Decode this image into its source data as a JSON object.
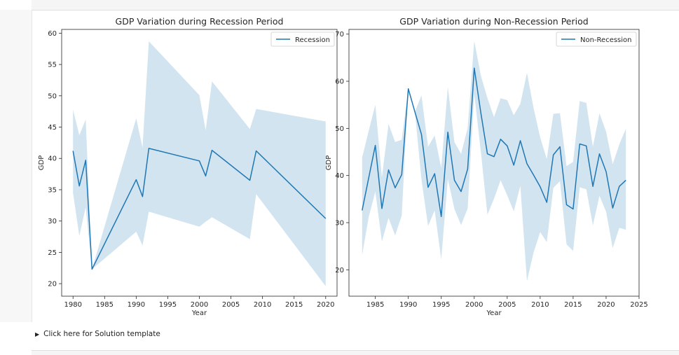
{
  "app": {
    "details_label": "Click here for Solution template"
  },
  "theme": {
    "line_color": "#1f77b4",
    "band_color": "#1f77b4",
    "band_opacity": 0.2
  },
  "chart_data": [
    {
      "type": "line",
      "title": "GDP Variation during Recession Period",
      "xlabel": "Year",
      "ylabel": "GDP",
      "xlim": [
        1978.2,
        2021.8
      ],
      "ylim": [
        18.0,
        60.6
      ],
      "xticks": [
        1980,
        1985,
        1990,
        1995,
        2000,
        2005,
        2010,
        2015,
        2020
      ],
      "yticks": [
        20,
        25,
        30,
        35,
        40,
        45,
        50,
        55,
        60
      ],
      "legend": {
        "entries": [
          "Recession"
        ],
        "position": "top-right"
      },
      "grid": false,
      "series": [
        {
          "name": "Recession",
          "x": [
            1980,
            1981,
            1982,
            1983,
            1990,
            1991,
            1992,
            2000,
            2001,
            2002,
            2008,
            2009,
            2020
          ],
          "y": [
            41.2,
            35.6,
            39.7,
            22.3,
            36.6,
            33.9,
            41.6,
            39.6,
            37.2,
            41.3,
            36.5,
            41.2,
            30.4
          ],
          "upper": [
            47.8,
            43.7,
            46.2,
            22.3,
            46.4,
            41.7,
            58.7,
            50.1,
            44.5,
            52.3,
            44.7,
            47.9,
            45.9
          ],
          "lower": [
            34.5,
            27.6,
            32.2,
            22.3,
            28.3,
            26.1,
            31.5,
            29.1,
            29.9,
            30.6,
            27.1,
            34.3,
            19.6
          ]
        }
      ]
    },
    {
      "type": "line",
      "title": "GDP Variation during Non-Recession Period",
      "xlabel": "Year",
      "ylabel": "GDP",
      "xlim": [
        1981.0,
        2025.0
      ],
      "ylim": [
        14.4,
        71.0
      ],
      "xticks": [
        1985,
        1990,
        1995,
        2000,
        2005,
        2010,
        2015,
        2020,
        2025
      ],
      "yticks": [
        20,
        30,
        40,
        50,
        60,
        70
      ],
      "legend": {
        "entries": [
          "Non-Recession"
        ],
        "position": "top-right"
      },
      "grid": false,
      "series": [
        {
          "name": "Non-Recession",
          "x": [
            1983,
            1984,
            1985,
            1986,
            1987,
            1988,
            1989,
            1990,
            1991,
            1992,
            1993,
            1994,
            1995,
            1996,
            1997,
            1998,
            1999,
            2000,
            2001,
            2002,
            2003,
            2004,
            2005,
            2006,
            2007,
            2008,
            2009,
            2010,
            2011,
            2012,
            2013,
            2014,
            2015,
            2016,
            2017,
            2018,
            2019,
            2020,
            2021,
            2022,
            2023
          ],
          "y": [
            32.6,
            39.5,
            46.4,
            33.0,
            41.2,
            37.4,
            40.2,
            58.4,
            53.5,
            48.7,
            37.5,
            40.4,
            31.3,
            49.2,
            39.0,
            36.6,
            41.4,
            62.8,
            53.3,
            44.6,
            44.0,
            47.7,
            46.3,
            42.2,
            47.4,
            42.5,
            40.1,
            37.6,
            34.3,
            44.4,
            46.1,
            33.8,
            32.9,
            46.7,
            46.3,
            37.7,
            44.6,
            40.8,
            33.1,
            37.7,
            39.0
          ],
          "upper": [
            43.8,
            49.5,
            55.0,
            39.6,
            50.9,
            47.1,
            47.6,
            58.4,
            53.5,
            57.0,
            46.1,
            48.5,
            41.6,
            58.8,
            47.1,
            44.6,
            50.1,
            68.6,
            61.2,
            56.4,
            52.4,
            56.4,
            56.0,
            52.8,
            55.2,
            61.8,
            54.3,
            48.1,
            43.5,
            53.1,
            53.2,
            42.0,
            42.9,
            55.8,
            55.4,
            46.1,
            53.2,
            49.3,
            42.4,
            46.6,
            49.9
          ],
          "lower": [
            23.1,
            31.2,
            36.6,
            26.0,
            31.0,
            27.3,
            31.5,
            58.4,
            53.5,
            39.1,
            29.3,
            32.6,
            22.2,
            39.3,
            32.9,
            29.5,
            33.0,
            57.3,
            45.1,
            31.7,
            35.1,
            39.0,
            35.8,
            32.4,
            37.8,
            17.6,
            23.7,
            28.0,
            25.9,
            37.4,
            38.8,
            25.4,
            24.0,
            37.5,
            37.1,
            29.4,
            35.7,
            32.3,
            24.6,
            28.9,
            28.5
          ]
        }
      ]
    }
  ]
}
